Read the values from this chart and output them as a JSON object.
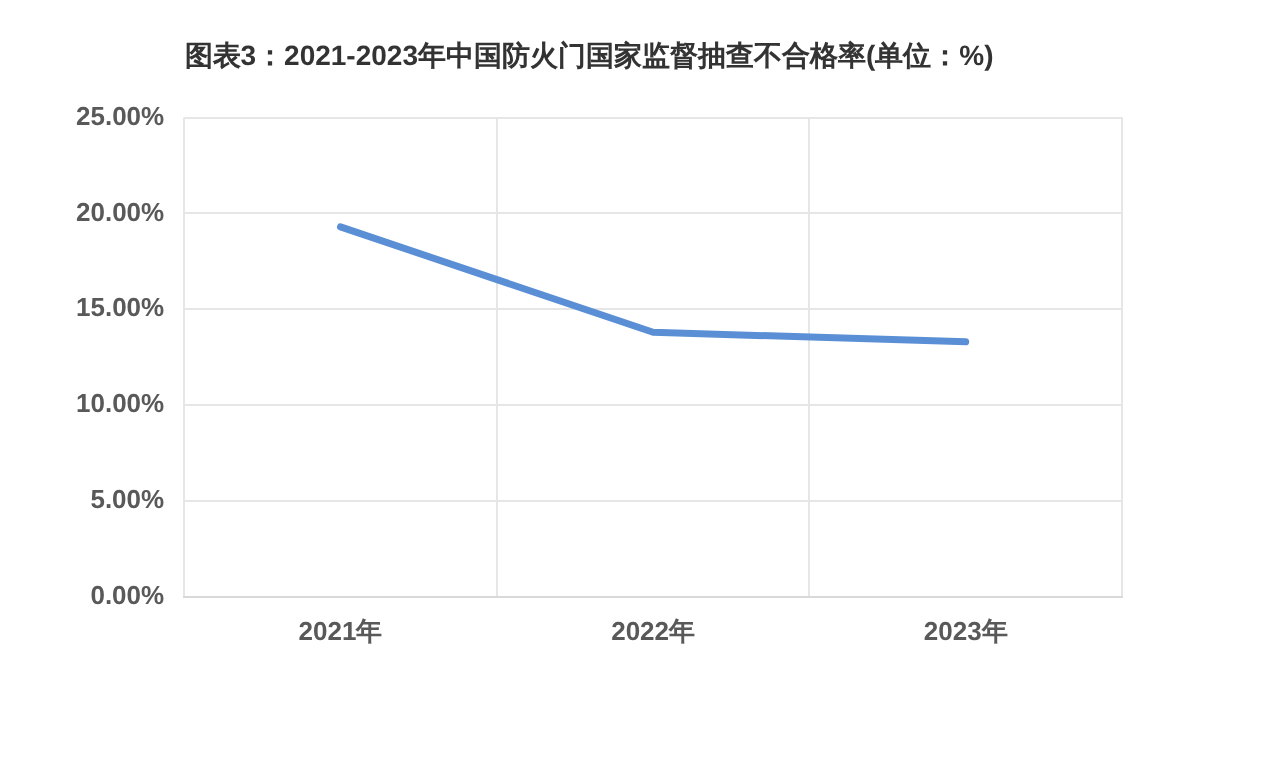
{
  "chart_data": {
    "type": "line",
    "title": "图表3：2021-2023年中国防火门国家监督抽查不合格率(单位：%)",
    "categories": [
      "2021年",
      "2022年",
      "2023年"
    ],
    "series": [
      {
        "color": "#5b8fd5",
        "values": [
          19.3,
          13.8,
          13.3
        ]
      }
    ],
    "ylim": [
      0,
      25
    ],
    "yticks": [
      {
        "value": 0,
        "label": "0.00%"
      },
      {
        "value": 5,
        "label": "5.00%"
      },
      {
        "value": 10,
        "label": "10.00%"
      },
      {
        "value": 15,
        "label": "15.00%"
      },
      {
        "value": 20,
        "label": "20.00%"
      },
      {
        "value": 25,
        "label": "25.00%"
      }
    ],
    "grid": true,
    "legend": false,
    "marker": "none",
    "line_style": "solid"
  }
}
